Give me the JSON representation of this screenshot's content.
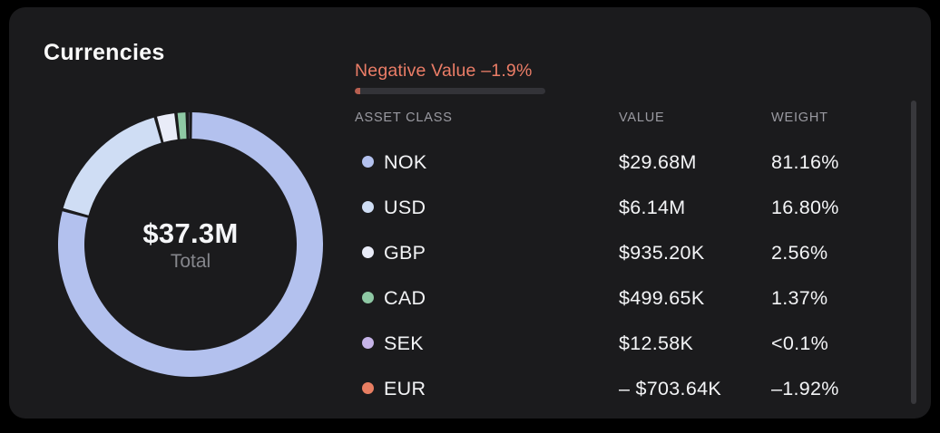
{
  "card": {
    "title": "Currencies"
  },
  "donut": {
    "center_value": "$37.3M",
    "center_label": "Total"
  },
  "negative_bar": {
    "label": "Negative Value –1.9%",
    "percent": 1.9,
    "fill_color": "#b85f50",
    "track_color": "#333338"
  },
  "table": {
    "headers": [
      "ASSET CLASS",
      "VALUE",
      "WEIGHT"
    ],
    "rows": [
      {
        "label": "NOK",
        "value": "$29.68M",
        "weight": "81.16%"
      },
      {
        "label": "USD",
        "value": "$6.14M",
        "weight": "16.80%"
      },
      {
        "label": "GBP",
        "value": "$935.20K",
        "weight": "2.56%"
      },
      {
        "label": "CAD",
        "value": "$499.65K",
        "weight": "1.37%"
      },
      {
        "label": "SEK",
        "value": "$12.58K",
        "weight": "<0.1%"
      },
      {
        "label": "EUR",
        "value": "– $703.64K",
        "weight": "–1.92%"
      }
    ]
  },
  "chart_data": {
    "type": "pie",
    "donut": true,
    "title": "Currencies",
    "center_total_label": "$37.3M Total",
    "categories": [
      "NOK",
      "USD",
      "GBP",
      "CAD",
      "SEK",
      "EUR"
    ],
    "values_display": [
      "$29.68M",
      "$6.14M",
      "$935.20K",
      "$499.65K",
      "$12.58K",
      "– $703.64K"
    ],
    "values_usd": [
      29680000,
      6140000,
      935200,
      499650,
      12580,
      -703640
    ],
    "weights_pct": [
      81.16,
      16.8,
      2.56,
      1.37,
      0.03,
      -1.92
    ],
    "colors": [
      "#b3c1ee",
      "#cfddf4",
      "#e9ecf8",
      "#8ec8a4",
      "#c6b4e8",
      "#e87e62"
    ],
    "negative_note": "Negative Value –1.9%",
    "start_angle_deg": 0,
    "clockwise": true,
    "legend_position": "right-table"
  }
}
